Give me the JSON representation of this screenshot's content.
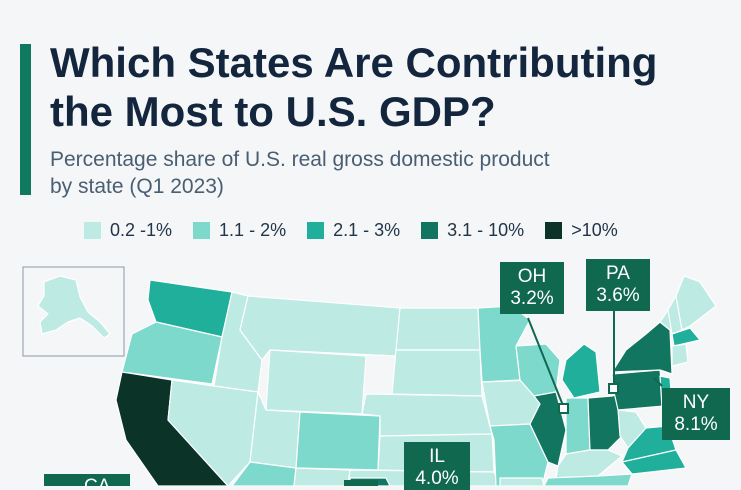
{
  "header": {
    "title_line1": "Which States Are Contributing",
    "title_line2": "the Most to U.S. GDP?",
    "subtitle_line1": "Percentage share of U.S. real gross domestic product",
    "subtitle_line2": "by state (Q1 2023)"
  },
  "legend": [
    {
      "label": "0.2 -1%",
      "color": "#bdeae3"
    },
    {
      "label": "1.1 - 2%",
      "color": "#7cd9cc"
    },
    {
      "label": "2.1 - 3%",
      "color": "#1faf9b"
    },
    {
      "label": "3.1 - 10%",
      "color": "#127560"
    },
    {
      "label": ">10%",
      "color": "#0b3328"
    }
  ],
  "callouts": {
    "oh": {
      "code": "OH",
      "value": "3.2%"
    },
    "pa": {
      "code": "PA",
      "value": "3.6%"
    },
    "ny": {
      "code": "NY",
      "value": "8.1%"
    },
    "il": {
      "code": "IL",
      "value": "4.0%"
    },
    "ca": {
      "code": "CA",
      "value": ""
    }
  },
  "map_data": {
    "colors": {
      "tier1": "#bdeae3",
      "tier2": "#7cd9cc",
      "tier3": "#1faf9b",
      "tier4": "#127560",
      "tier5": "#0b3328",
      "border": "#ffffff"
    },
    "states": [
      {
        "id": "WA",
        "tier": 3
      },
      {
        "id": "OR",
        "tier": 2
      },
      {
        "id": "CA",
        "tier": 5
      },
      {
        "id": "ID",
        "tier": 1
      },
      {
        "id": "NV",
        "tier": 1
      },
      {
        "id": "MT",
        "tier": 1
      },
      {
        "id": "WY",
        "tier": 1
      },
      {
        "id": "UT",
        "tier": 1
      },
      {
        "id": "AZ",
        "tier": 2
      },
      {
        "id": "CO",
        "tier": 2
      },
      {
        "id": "NM",
        "tier": 1
      },
      {
        "id": "ND",
        "tier": 1
      },
      {
        "id": "SD",
        "tier": 1
      },
      {
        "id": "NE",
        "tier": 1
      },
      {
        "id": "KS",
        "tier": 1
      },
      {
        "id": "OK",
        "tier": 1
      },
      {
        "id": "TX",
        "tier": 4
      },
      {
        "id": "MN",
        "tier": 2
      },
      {
        "id": "IA",
        "tier": 1
      },
      {
        "id": "MO",
        "tier": 2
      },
      {
        "id": "AR",
        "tier": 1
      },
      {
        "id": "LA",
        "tier": 1
      },
      {
        "id": "WI",
        "tier": 2
      },
      {
        "id": "IL",
        "tier": 4
      },
      {
        "id": "MI",
        "tier": 3
      },
      {
        "id": "IN",
        "tier": 2
      },
      {
        "id": "OH",
        "tier": 4
      },
      {
        "id": "KY",
        "tier": 1
      },
      {
        "id": "TN",
        "tier": 2
      },
      {
        "id": "MS",
        "tier": 1
      },
      {
        "id": "AL",
        "tier": 1
      },
      {
        "id": "PA",
        "tier": 4
      },
      {
        "id": "NY",
        "tier": 4
      },
      {
        "id": "WV",
        "tier": 1
      },
      {
        "id": "VA",
        "tier": 3
      },
      {
        "id": "NC",
        "tier": 3
      },
      {
        "id": "VT",
        "tier": 1
      },
      {
        "id": "NH",
        "tier": 1
      },
      {
        "id": "ME",
        "tier": 1
      },
      {
        "id": "MA",
        "tier": 3
      },
      {
        "id": "CT",
        "tier": 1
      },
      {
        "id": "NJ",
        "tier": 3
      },
      {
        "id": "AK",
        "tier": 1
      }
    ]
  }
}
